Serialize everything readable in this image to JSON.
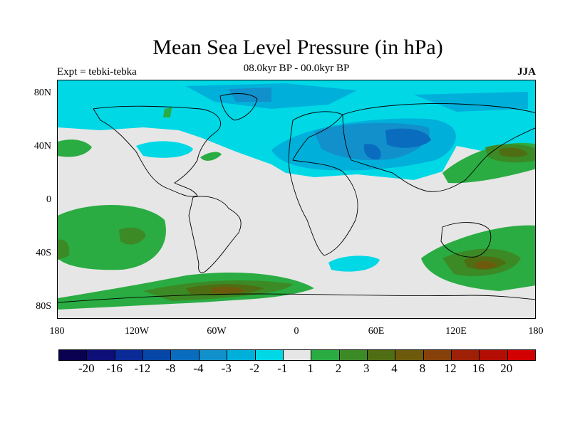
{
  "title": "Mean Sea Level Pressure (in hPa)",
  "subtitle": "08.0kyr BP - 00.0kyr BP",
  "experiment": "Expt = tebki-tebka",
  "season": "JJA",
  "lat_labels": [
    "80N",
    "40N",
    "0",
    "40S",
    "80S"
  ],
  "lon_labels": [
    "180",
    "120W",
    "60W",
    "0",
    "60E",
    "120E",
    "180"
  ],
  "colorbar": {
    "labels": [
      "-20",
      "-16",
      "-12",
      "-8",
      "-4",
      "-3",
      "-2",
      "-1",
      "1",
      "2",
      "3",
      "4",
      "8",
      "12",
      "16",
      "20"
    ],
    "colors": [
      "#0a0050",
      "#0d0e78",
      "#0a2a96",
      "#0546a6",
      "#0a6cbe",
      "#1190cc",
      "#00b0da",
      "#00d8e6",
      "#e6e6e6",
      "#2aac42",
      "#3c8a26",
      "#4f6e14",
      "#6e5a0c",
      "#86400a",
      "#9e2006",
      "#b40e04",
      "#d20000"
    ]
  },
  "map_background": "#e6e6e6"
}
